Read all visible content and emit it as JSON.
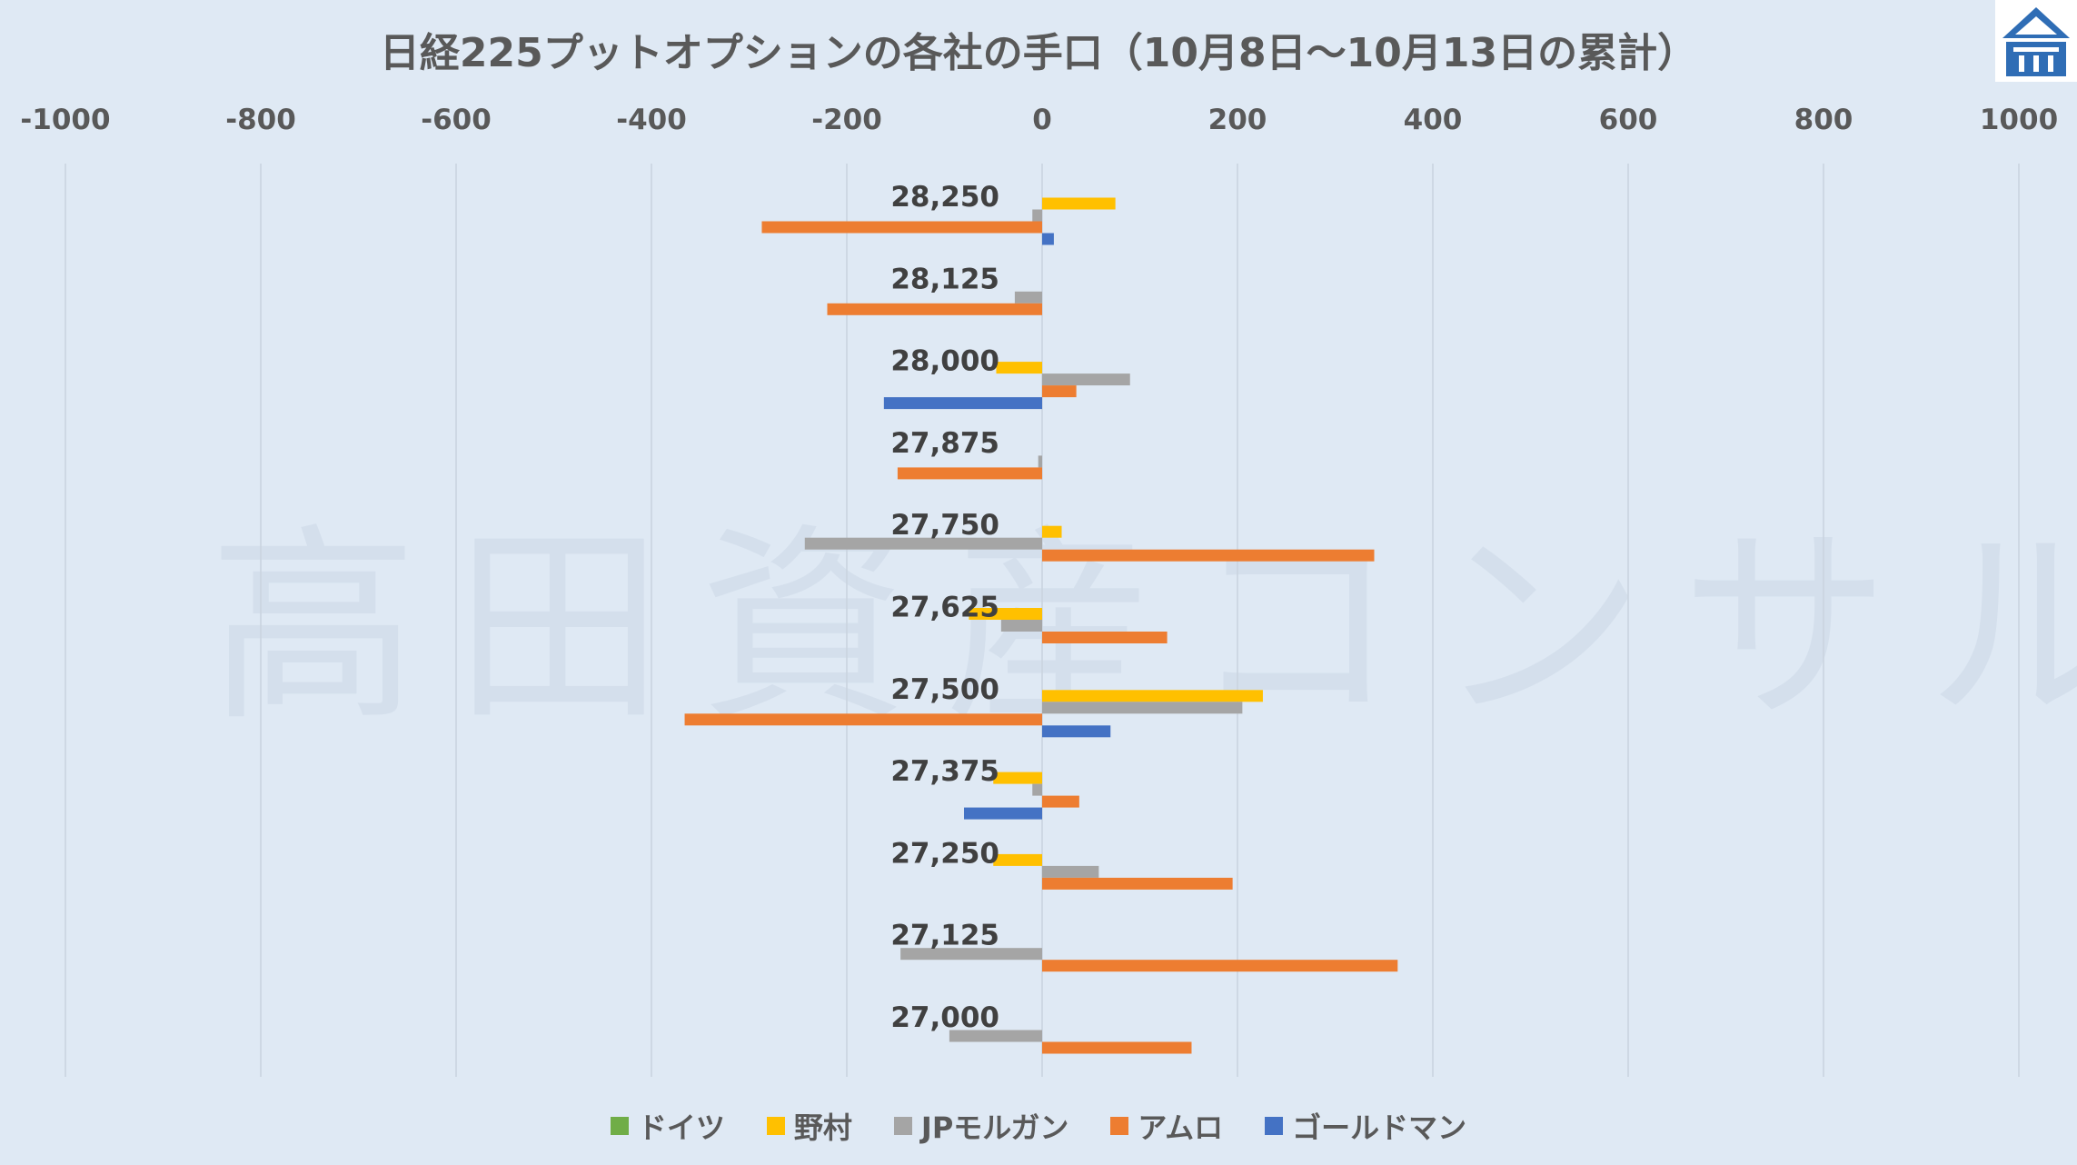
{
  "chart_data": {
    "type": "bar",
    "orientation": "horizontal",
    "title": "日経225プットオプションの各社の手口（10月8日～10月13日の累計）",
    "categories": [
      "28,250",
      "28,125",
      "28,000",
      "27,875",
      "27,750",
      "27,625",
      "27,500",
      "27,375",
      "27,250",
      "27,125",
      "27,000"
    ],
    "series": [
      {
        "name": "ドイツ",
        "color": "#70ad47",
        "values": [
          0,
          0,
          0,
          0,
          0,
          0,
          0,
          0,
          0,
          0,
          0
        ]
      },
      {
        "name": "野村",
        "color": "#ffc000",
        "values": [
          75,
          0,
          -47,
          0,
          20,
          -75,
          226,
          -50,
          -50,
          0,
          0
        ]
      },
      {
        "name": "JPモルガン",
        "color": "#a5a5a5",
        "values": [
          -10,
          -28,
          90,
          -4,
          -243,
          -42,
          205,
          -10,
          58,
          -145,
          -95
        ]
      },
      {
        "name": "アムロ",
        "color": "#ed7d31",
        "values": [
          -287,
          -220,
          35,
          -148,
          340,
          128,
          -366,
          38,
          195,
          364,
          153
        ]
      },
      {
        "name": "ゴールドマン",
        "color": "#4472c4",
        "values": [
          12,
          0,
          -162,
          0,
          0,
          0,
          70,
          -80,
          0,
          0,
          0
        ]
      }
    ],
    "xlim": [
      -1000,
      1000
    ],
    "xticks": [
      "-1000",
      "-800",
      "-600",
      "-400",
      "-200",
      "0",
      "200",
      "400",
      "600",
      "800",
      "1000"
    ],
    "x_axis_position": "top",
    "grid": true,
    "legend_position": "bottom"
  },
  "watermark": "高田資産コンサル",
  "logo_icon": "building-logo-icon"
}
